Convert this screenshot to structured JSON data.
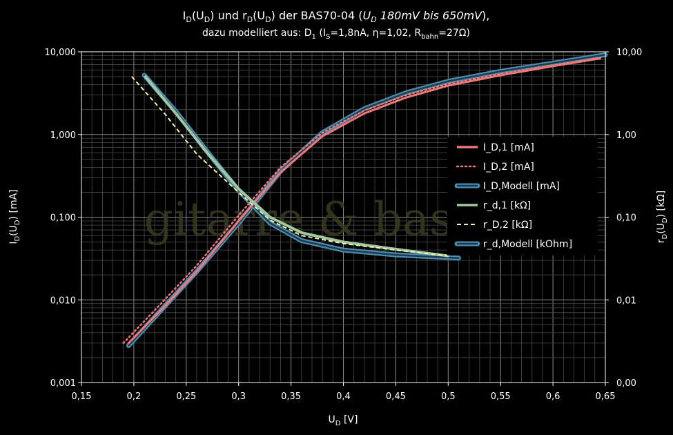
{
  "chart_data": {
    "type": "line",
    "title": {
      "line1": {
        "a": "I",
        "a_sub": "D",
        "b": "(U",
        "b_sub": "D",
        "c": ") und r",
        "c_sub": "D",
        "d": "(U",
        "d_sub": "D",
        "e": ") der BAS70-04 (",
        "f_it": "U",
        "f_sub": "D",
        "g_it": " 180mV bis 650mV",
        "h": "),"
      },
      "line2": {
        "a": "dazu modelliert aus: D",
        "a_sub": "1",
        "b": " (I",
        "b_sub": "S",
        "c": "=1,8nA, η=1,02, R",
        "c_sub": "bahn",
        "d": "=27Ω)"
      }
    },
    "xlabel": {
      "main": "U",
      "sub": "D",
      "rest": " [V]"
    },
    "ylabel_left": {
      "a": "I",
      "a_sub": "D",
      "b": "(U",
      "b_sub": "D",
      "c": ") [mA]"
    },
    "ylabel_right": {
      "a": "r",
      "a_sub": "D",
      "b": "(U",
      "b_sub": "D",
      "c": ") [kΩ]"
    },
    "xlim": [
      0.15,
      0.65
    ],
    "ylim": [
      0.001,
      10
    ],
    "yscale": "log",
    "grid": true,
    "x_ticks": [
      "0,15",
      "0,2",
      "0,25",
      "0,3",
      "0,35",
      "0,4",
      "0,45",
      "0,5",
      "0,55",
      "0,6",
      "0,65"
    ],
    "x_tick_values": [
      0.15,
      0.2,
      0.25,
      0.3,
      0.35,
      0.4,
      0.45,
      0.5,
      0.55,
      0.6,
      0.65
    ],
    "y_ticks_left": [
      "0,001",
      "0,010",
      "0,100",
      "1,000",
      "10,000"
    ],
    "y_ticks_right": [
      "0,00",
      "0,01",
      "0,10",
      "1,00",
      "10,00"
    ],
    "y_tick_values": [
      0.001,
      0.01,
      0.1,
      1,
      10
    ],
    "legend_position": "right",
    "watermark": "gitarre & basteln",
    "series": [
      {
        "name": "I_D,1 [mA]",
        "color": "#f07878",
        "style": "solid",
        "x": [
          0.195,
          0.23,
          0.26,
          0.3,
          0.34,
          0.38,
          0.42,
          0.46,
          0.5,
          0.55,
          0.6,
          0.645
        ],
        "y": [
          0.003,
          0.0085,
          0.022,
          0.09,
          0.35,
          0.95,
          1.8,
          2.8,
          3.9,
          5.2,
          6.7,
          8.3
        ]
      },
      {
        "name": "I_D,2 [mA]",
        "color": "#f07878",
        "style": "dotted",
        "x": [
          0.19,
          0.22,
          0.26,
          0.3,
          0.34,
          0.38,
          0.42,
          0.46,
          0.5,
          0.55,
          0.6,
          0.645
        ],
        "y": [
          0.003,
          0.0075,
          0.026,
          0.105,
          0.4,
          1.05,
          1.95,
          3.0,
          4.1,
          5.4,
          6.9,
          8.5
        ]
      },
      {
        "name": "I_D,Modell [mA]",
        "color": "#4a8bb0",
        "style": "model",
        "x": [
          0.195,
          0.23,
          0.26,
          0.3,
          0.34,
          0.38,
          0.42,
          0.46,
          0.5,
          0.55,
          0.6,
          0.65
        ],
        "y": [
          0.0028,
          0.0085,
          0.022,
          0.085,
          0.36,
          1.05,
          2.05,
          3.2,
          4.4,
          5.8,
          7.3,
          9.2
        ]
      },
      {
        "name": "r_d,1 [kΩ]",
        "color": "#9fc7a0",
        "style": "solid",
        "x": [
          0.211,
          0.24,
          0.27,
          0.3,
          0.33,
          0.36,
          0.4,
          0.45,
          0.5
        ],
        "y": [
          5.0,
          1.8,
          0.6,
          0.22,
          0.1,
          0.065,
          0.05,
          0.041,
          0.034
        ]
      },
      {
        "name": "r_D,2 [kΩ]",
        "color": "#f2f2b0",
        "style": "dashed",
        "x": [
          0.198,
          0.23,
          0.26,
          0.3,
          0.33,
          0.36,
          0.4,
          0.45,
          0.5
        ],
        "y": [
          5.0,
          1.75,
          0.58,
          0.2,
          0.092,
          0.06,
          0.048,
          0.04,
          0.034
        ]
      },
      {
        "name": "r_d,Modell [kOhm]",
        "color": "#4a8bb0",
        "style": "model",
        "x": [
          0.21,
          0.24,
          0.27,
          0.3,
          0.33,
          0.36,
          0.4,
          0.45,
          0.51
        ],
        "y": [
          5.2,
          1.9,
          0.62,
          0.21,
          0.085,
          0.052,
          0.04,
          0.035,
          0.032
        ]
      }
    ]
  }
}
